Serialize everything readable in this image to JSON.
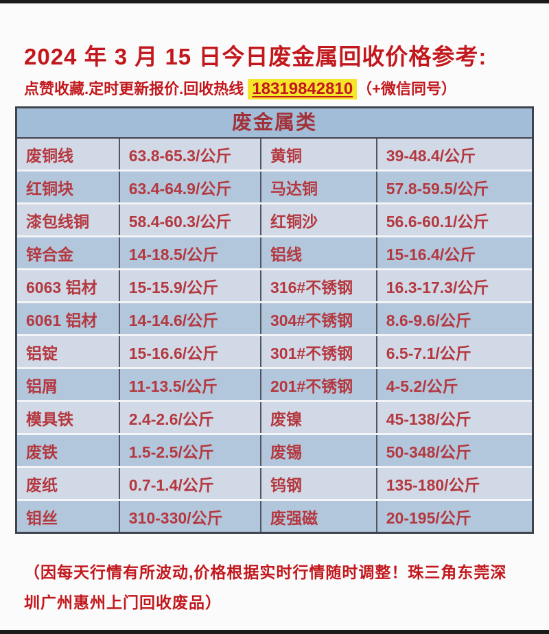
{
  "page": {
    "title": "2024 年 3 月 15 日今日废金属回收价格参考:",
    "subtitle_prefix": "点赞收藏.定时更新报价.回收热线 ",
    "phone": "18319842810",
    "subtitle_suffix": "（+微信同号）",
    "footer_line1": "（因每天行情有所波动,价格根据实时行情随时调整！珠三角东莞深",
    "footer_line2": "圳广州惠州上门回收废品）"
  },
  "colors": {
    "title_red": "#c2181d",
    "cell_red": "#b4383f",
    "header_blue": "#a2bdd8",
    "row_light": "#d1d9e7",
    "row_dark": "#b2c6dc",
    "phone_highlight": "#f6e62b",
    "outer_border": "#3e434d"
  },
  "table": {
    "header": "废金属类",
    "unit": "公斤",
    "rows": [
      {
        "c1": "废铜线",
        "c2": "63.8-65.3/公斤",
        "c3": "黄铜",
        "c4": "39-48.4/公斤"
      },
      {
        "c1": "红铜块",
        "c2": "63.4-64.9/公斤",
        "c3": "马达铜",
        "c4": "57.8-59.5/公斤"
      },
      {
        "c1": "漆包线铜",
        "c2": "58.4-60.3/公斤",
        "c3": "红铜沙",
        "c4": "56.6-60.1/公斤"
      },
      {
        "c1": "锌合金",
        "c2": "14-18.5/公斤",
        "c3": "铝线",
        "c4": "15-16.4/公斤"
      },
      {
        "c1": "6063 铝材",
        "c2": "15-15.9/公斤",
        "c3": "316#不锈钢",
        "c4": "16.3-17.3/公斤"
      },
      {
        "c1": "6061 铝材",
        "c2": "14-14.6/公斤",
        "c3": "304#不锈钢",
        "c4": "8.6-9.6/公斤"
      },
      {
        "c1": "铝锭",
        "c2": "15-16.6/公斤",
        "c3": "301#不锈钢",
        "c4": "6.5-7.1/公斤"
      },
      {
        "c1": "铝屑",
        "c2": "11-13.5/公斤",
        "c3": "201#不锈钢",
        "c4": "4-5.2/公斤"
      },
      {
        "c1": "模具铁",
        "c2": "2.4-2.6/公斤",
        "c3": "废镍",
        "c4": "45-138/公斤"
      },
      {
        "c1": "废铁",
        "c2": "1.5-2.5/公斤",
        "c3": "废锡",
        "c4": "50-348/公斤"
      },
      {
        "c1": "废纸",
        "c2": "0.7-1.4/公斤",
        "c3": "钨钢",
        "c4": "135-180/公斤"
      },
      {
        "c1": "钼丝",
        "c2": "310-330/公斤",
        "c3": "废强磁",
        "c4": "20-195/公斤"
      }
    ]
  }
}
